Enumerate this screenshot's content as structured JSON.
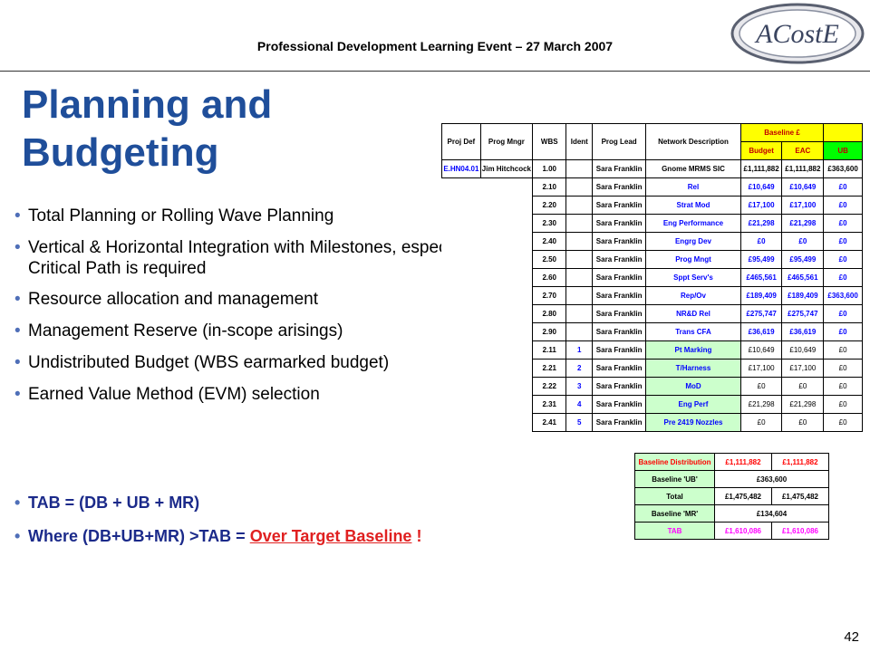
{
  "header": {
    "text": "Professional Development Learning Event – 27 March 2007"
  },
  "logo": {
    "text": "ACostE"
  },
  "title": {
    "line1": "Planning and",
    "line2": "Budgeting"
  },
  "bullets": [
    "Total Planning or Rolling Wave Planning",
    "Vertical & Horizontal Integration with Milestones, especially if a Critical Path is required",
    " Resource allocation and management",
    " Management Reserve (in-scope arisings)",
    " Undistributed Budget (WBS earmarked budget)",
    " Earned Value Method (EVM) selection"
  ],
  "formula": {
    "tab": " TAB = (DB + UB + MR)",
    "where_prefix": " Where (DB+UB+MR) >TAB = ",
    "where_link": "Over Target Baseline",
    "where_suffix": " !"
  },
  "page_number": "42",
  "sheet": {
    "headers": [
      "Proj Def",
      "Prog Mngr",
      "WBS",
      "Ident",
      "Prog Lead",
      "Network Description",
      "Baseline £",
      "Budget",
      "EAC",
      "UB"
    ],
    "rows": [
      [
        "E.HN04.01",
        "Jim Hitchcock",
        "1.00",
        "",
        "Sara Franklin",
        "Gnome MRMS SIC",
        "£1,111,882",
        "£1,111,882",
        "£363,600"
      ],
      [
        "",
        "",
        "2.10",
        "",
        "Sara Franklin",
        "Rel",
        "£10,649",
        "£10,649",
        "£0"
      ],
      [
        "",
        "",
        "2.20",
        "",
        "Sara Franklin",
        "Strat Mod",
        "£17,100",
        "£17,100",
        "£0"
      ],
      [
        "",
        "",
        "2.30",
        "",
        "Sara Franklin",
        "Eng Performance",
        "£21,298",
        "£21,298",
        "£0"
      ],
      [
        "",
        "",
        "2.40",
        "",
        "Sara Franklin",
        "Engrg Dev",
        "£0",
        "£0",
        "£0"
      ],
      [
        "",
        "",
        "2.50",
        "",
        "Sara Franklin",
        "Prog Mngt",
        "£95,499",
        "£95,499",
        "£0"
      ],
      [
        "",
        "",
        "2.60",
        "",
        "Sara Franklin",
        "Sppt Serv's",
        "£465,561",
        "£465,561",
        "£0"
      ],
      [
        "",
        "",
        "2.70",
        "",
        "Sara Franklin",
        "Rep/Ov",
        "£189,409",
        "£189,409",
        "£363,600"
      ],
      [
        "",
        "",
        "2.80",
        "",
        "Sara Franklin",
        "NR&D Rel",
        "£275,747",
        "£275,747",
        "£0"
      ],
      [
        "",
        "",
        "2.90",
        "",
        "Sara Franklin",
        "Trans CFA",
        "£36,619",
        "£36,619",
        "£0"
      ],
      [
        "",
        "",
        "2.11",
        "1",
        "Sara Franklin",
        "Pt Marking",
        "£10,649",
        "£10,649",
        "£0"
      ],
      [
        "",
        "",
        "2.21",
        "2",
        "Sara Franklin",
        "T/Harness",
        "£17,100",
        "£17,100",
        "£0"
      ],
      [
        "",
        "",
        "2.22",
        "3",
        "Sara Franklin",
        "MoD",
        "£0",
        "£0",
        "£0"
      ],
      [
        "",
        "",
        "2.31",
        "4",
        "Sara Franklin",
        "Eng Perf",
        "£21,298",
        "£21,298",
        "£0"
      ],
      [
        "",
        "",
        "2.41",
        "5",
        "Sara Franklin",
        "Pre 2419 Nozzles",
        "£0",
        "£0",
        "£0"
      ]
    ],
    "summary": [
      [
        "Baseline Distribution",
        "£1,111,882",
        "£1,111,882"
      ],
      [
        "Baseline 'UB'",
        "£363,600"
      ],
      [
        "Total",
        "£1,475,482",
        "£1,475,482"
      ],
      [
        "Baseline 'MR'",
        "£134,604"
      ],
      [
        "TAB",
        "£1,610,086",
        "£1,610,086"
      ]
    ]
  }
}
